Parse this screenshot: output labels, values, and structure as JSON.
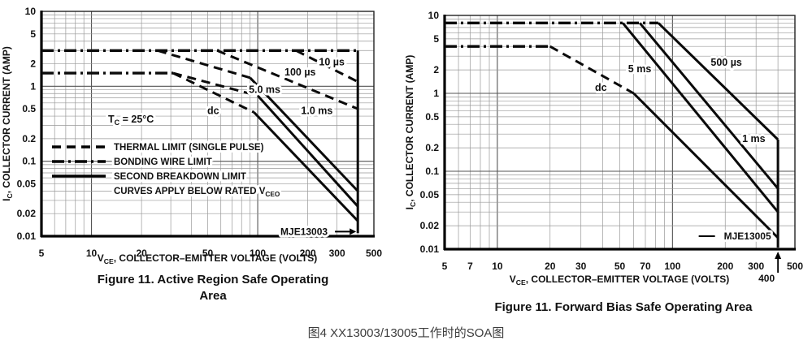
{
  "page": {
    "bottom_caption": "图4 XX13003/13005工作时的SOA图"
  },
  "chart_data": [
    {
      "type": "line",
      "id": "active-region-soa",
      "device": "MJE13003",
      "caption_lines": [
        "Figure 11. Active Region Safe Operating",
        "Area"
      ],
      "xlabel_parts": [
        [
          "V",
          0
        ],
        [
          "CE",
          1
        ],
        [
          ", COLLECTOR–EMITTER VOLTAGE (VOLTS)",
          0
        ]
      ],
      "ylabel_parts": [
        [
          "I",
          0
        ],
        [
          "C",
          1
        ],
        [
          ", COLLECTOR CURRENT (AMP)",
          0
        ]
      ],
      "xlim": [
        5,
        500
      ],
      "ylim": [
        0.01,
        10
      ],
      "grid": "log-log full",
      "x_ticks": [
        [
          5,
          "5"
        ],
        [
          10,
          "10"
        ],
        [
          20,
          "20"
        ],
        [
          50,
          "50"
        ],
        [
          100,
          "100"
        ],
        [
          200,
          "200"
        ],
        [
          300,
          "300"
        ],
        [
          500,
          "500"
        ]
      ],
      "y_ticks": [
        [
          10,
          "10"
        ],
        [
          5,
          "5"
        ],
        [
          2,
          "2"
        ],
        [
          1,
          "1"
        ],
        [
          0.5,
          "0.5"
        ],
        [
          0.2,
          "0.2"
        ],
        [
          0.1,
          "0.1"
        ],
        [
          0.05,
          "0.05"
        ],
        [
          0.02,
          "0.02"
        ],
        [
          0.01,
          "0.01"
        ]
      ],
      "condition_parts": [
        [
          "T",
          0
        ],
        [
          "C",
          1
        ],
        [
          " = 25°C",
          0
        ]
      ],
      "legend": [
        {
          "style": "dashed",
          "label_parts": [
            [
              "THERMAL LIMIT (SINGLE PULSE)",
              0
            ]
          ]
        },
        {
          "style": "dashdot",
          "label_parts": [
            [
              "BONDING WIRE LIMIT",
              0
            ]
          ]
        },
        {
          "style": "solid",
          "label_parts": [
            [
              "SECOND BREAKDOWN LIMIT",
              0
            ]
          ]
        },
        {
          "style": "none",
          "label_parts": [
            [
              "CURVES APPLY BELOW RATED V",
              0
            ],
            [
              "CEO",
              1
            ]
          ]
        }
      ],
      "series": [
        {
          "name": "bonding-wire-limit-3A",
          "style": "dashdot",
          "points": [
            [
              5,
              3
            ],
            [
              400,
              3
            ]
          ]
        },
        {
          "name": "bonding-wire-limit-1.5A",
          "style": "dashdot",
          "points": [
            [
              5,
              1.5
            ],
            [
              31,
              1.5
            ]
          ]
        },
        {
          "name": "10us-thermal-limit",
          "style": "dashed",
          "points": [
            [
              170,
              3
            ],
            [
              400,
              1.15
            ]
          ]
        },
        {
          "name": "100us-thermal-limit",
          "style": "dashed",
          "points": [
            [
              57,
              3
            ],
            [
              400,
              0.5
            ]
          ]
        },
        {
          "name": "1ms-thermal-limit",
          "style": "dashed",
          "points": [
            [
              25,
              3
            ],
            [
              90,
              1.3
            ]
          ]
        },
        {
          "name": "1ms-second-breakdown",
          "style": "solid",
          "points": [
            [
              90,
              1.3
            ],
            [
              400,
              0.04
            ]
          ]
        },
        {
          "name": "5ms-thermal-limit",
          "style": "dashed",
          "points": [
            [
              31,
              1.5
            ],
            [
              100,
              0.75
            ]
          ]
        },
        {
          "name": "5ms-second-breakdown",
          "style": "solid",
          "points": [
            [
              100,
              0.75
            ],
            [
              400,
              0.025
            ]
          ]
        },
        {
          "name": "dc-thermal-limit",
          "style": "dashed",
          "points": [
            [
              31,
              1.5
            ],
            [
              95,
              0.45
            ]
          ]
        },
        {
          "name": "dc-second-breakdown",
          "style": "solid",
          "points": [
            [
              95,
              0.45
            ],
            [
              400,
              0.016
            ]
          ]
        },
        {
          "name": "vceo-limit-400V",
          "style": "solid",
          "points": [
            [
              400,
              3
            ],
            [
              400,
              0.011
            ]
          ]
        }
      ],
      "curve_labels": [
        {
          "text": "10 µs",
          "x": 279,
          "y": 2.1
        },
        {
          "text": "100 µs",
          "x": 180,
          "y": 1.55
        },
        {
          "text": "5.0 ms",
          "x": 110,
          "y": 0.9
        },
        {
          "text": "dc",
          "x": 54,
          "y": 0.47
        },
        {
          "text": "1.0 ms",
          "x": 227,
          "y": 0.47
        }
      ],
      "device_label": {
        "text": "MJE13003",
        "x": 190,
        "y": 0.0115,
        "arrow": "right-to-limit"
      }
    },
    {
      "type": "line",
      "id": "forward-bias-soa",
      "device": "MJE13005",
      "caption_lines": [
        "Figure 11. Forward Bias Safe Operating Area"
      ],
      "xlabel_parts": [
        [
          "V",
          0
        ],
        [
          "CE",
          1
        ],
        [
          ", COLLECTOR–EMITTER VOLTAGE (VOLTS)",
          0
        ]
      ],
      "ylabel_parts": [
        [
          "I",
          0
        ],
        [
          "C",
          1
        ],
        [
          ", COLLECTOR CURRENT (AMP)",
          0
        ]
      ],
      "xlim": [
        5,
        500
      ],
      "ylim": [
        0.01,
        10
      ],
      "grid": "log-log full",
      "x_ticks": [
        [
          5,
          "5"
        ],
        [
          7,
          "7"
        ],
        [
          10,
          "10"
        ],
        [
          20,
          "20"
        ],
        [
          30,
          "30"
        ],
        [
          50,
          "50"
        ],
        [
          70,
          "70"
        ],
        [
          100,
          "100"
        ],
        [
          200,
          "200"
        ],
        [
          300,
          "300"
        ],
        [
          500,
          "500"
        ]
      ],
      "x_extra_tick": {
        "v": 400,
        "label": "400"
      },
      "y_ticks": [
        [
          10,
          "10"
        ],
        [
          5,
          "5"
        ],
        [
          2,
          "2"
        ],
        [
          1,
          "1"
        ],
        [
          0.5,
          "0.5"
        ],
        [
          0.2,
          "0.2"
        ],
        [
          0.1,
          "0.1"
        ],
        [
          0.05,
          "0.05"
        ],
        [
          0.02,
          "0.02"
        ],
        [
          0.01,
          "0.01"
        ]
      ],
      "series": [
        {
          "name": "bonding-wire-limit-8A",
          "style": "dashdot",
          "points": [
            [
              5,
              8
            ],
            [
              83,
              8
            ]
          ]
        },
        {
          "name": "bonding-wire-limit-4A",
          "style": "dashdot",
          "points": [
            [
              5,
              4
            ],
            [
              20,
              4
            ]
          ]
        },
        {
          "name": "500us-limit",
          "style": "solid",
          "points": [
            [
              83,
              8
            ],
            [
              400,
              0.255
            ]
          ]
        },
        {
          "name": "1ms-limit",
          "style": "solid",
          "points": [
            [
              65,
              8
            ],
            [
              400,
              0.06
            ]
          ]
        },
        {
          "name": "5ms-limit",
          "style": "solid",
          "points": [
            [
              52,
              8
            ],
            [
              400,
              0.03
            ]
          ]
        },
        {
          "name": "dc-thermal-limit",
          "style": "dashed",
          "points": [
            [
              20,
              4
            ],
            [
              60,
              1.0
            ]
          ]
        },
        {
          "name": "dc-second-breakdown",
          "style": "solid",
          "points": [
            [
              60,
              1.0
            ],
            [
              400,
              0.014
            ]
          ]
        },
        {
          "name": "vceo-limit-400V",
          "style": "solid",
          "points": [
            [
              400,
              0.255
            ],
            [
              400,
              0.0105
            ]
          ]
        }
      ],
      "curve_labels": [
        {
          "text": "500 µs",
          "x": 203,
          "y": 2.5
        },
        {
          "text": "5 ms",
          "x": 65,
          "y": 2.05
        },
        {
          "text": "dc",
          "x": 39,
          "y": 1.18
        },
        {
          "text": "1 ms",
          "x": 291,
          "y": 0.26
        }
      ],
      "device_label": {
        "text": "MJE13005",
        "x": 268,
        "y": 0.0147,
        "arrow": "leader-left"
      }
    }
  ]
}
